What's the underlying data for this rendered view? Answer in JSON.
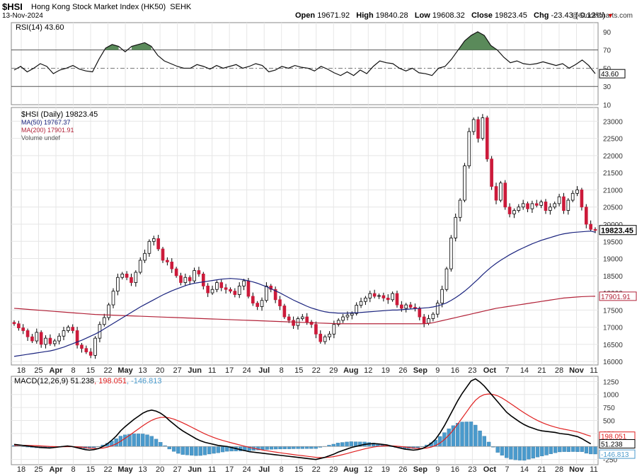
{
  "header": {
    "symbol": "$HSI",
    "name": "Hong Kong Stock Market Index (HK50)",
    "exchange": "SEHK",
    "date": "13-Nov-2024",
    "open_label": "Open",
    "open": "19671.92",
    "high_label": "High",
    "high": "19840.28",
    "low_label": "Low",
    "low": "19608.32",
    "close_label": "Close",
    "close": "19823.45",
    "chg_label": "Chg",
    "chg": "-23.43 (-0.12%)",
    "logo": "@StockCharts.com"
  },
  "colors": {
    "up_candle": "#ffffff",
    "down_candle": "#cc1a3a",
    "ma50": "#1a237e",
    "ma200": "#b22238",
    "rsi_fill": "#5a8a5a",
    "macd_line": "#000000",
    "macd_signal": "#e02020",
    "macd_hist": "#4a9acc"
  },
  "chart_data": [
    {
      "type": "line",
      "panel": "rsi",
      "title": "RSI(14) 43.60",
      "ylim": [
        10,
        100
      ],
      "yticks": [
        "90",
        "70",
        "50",
        "30",
        "10"
      ],
      "reference_lines": [
        70,
        30
      ],
      "last_value": "43.60",
      "values": [
        48,
        52,
        46,
        50,
        55,
        52,
        44,
        48,
        50,
        53,
        49,
        47,
        46,
        60,
        72,
        76,
        74,
        68,
        74,
        76,
        78,
        74,
        64,
        58,
        55,
        52,
        50,
        50,
        54,
        52,
        49,
        53,
        50,
        52,
        54,
        50,
        52,
        55,
        53,
        46,
        48,
        52,
        50,
        53,
        51,
        50,
        47,
        52,
        49,
        45,
        42,
        46,
        42,
        48,
        44,
        52,
        58,
        56,
        55,
        50,
        47,
        50,
        45,
        44,
        42,
        50,
        52,
        60,
        70,
        80,
        86,
        90,
        86,
        75,
        70,
        62,
        56,
        58,
        55,
        54,
        55,
        57,
        55,
        53,
        55,
        50,
        54,
        59,
        53,
        44
      ]
    },
    {
      "type": "candlestick",
      "panel": "price",
      "title": "$HSI (Daily) 19823.45",
      "legend": [
        "$HSI (Daily) 19823.45",
        "MA(50) 19767.37",
        "MA(200) 17901.91",
        "Volume undef"
      ],
      "ylim": [
        15900,
        23400
      ],
      "yticks": [
        "23000",
        "22500",
        "22000",
        "21500",
        "21000",
        "20500",
        "20000",
        "19500",
        "19000",
        "18500",
        "18000",
        "17500",
        "17000",
        "16500",
        "16000"
      ],
      "last_price_label": "19823.45",
      "ma200_label": "17901.91",
      "close": [
        17100,
        16980,
        16900,
        16720,
        16600,
        16850,
        16500,
        16680,
        16520,
        16600,
        16740,
        16900,
        17000,
        16900,
        16480,
        16380,
        16280,
        16180,
        16680,
        17080,
        17280,
        17650,
        18050,
        18450,
        18550,
        18450,
        18300,
        18600,
        18950,
        19150,
        19500,
        19580,
        19280,
        18950,
        18900,
        18700,
        18500,
        18300,
        18450,
        18350,
        18650,
        18550,
        18200,
        18000,
        18100,
        18300,
        18150,
        18100,
        18050,
        17950,
        18200,
        18350,
        17900,
        17700,
        17600,
        17780,
        18200,
        18100,
        17800,
        17620,
        17300,
        17200,
        17050,
        17250,
        17300,
        17150,
        17080,
        16800,
        16580,
        16720,
        16800,
        17080,
        17200,
        17300,
        17350,
        17400,
        17640,
        17750,
        17850,
        17980,
        17900,
        17920,
        17850,
        17800,
        17980,
        17650,
        17550,
        17650,
        17580,
        17540,
        17300,
        17120,
        17250,
        17380,
        17700,
        18100,
        18700,
        19600,
        20200,
        20700,
        21700,
        22700,
        23050,
        22500,
        23100,
        21900,
        21100,
        20700,
        21200,
        20500,
        20300,
        20400,
        20500,
        20600,
        20450,
        20600,
        20550,
        20650,
        20400,
        20500,
        20600,
        20800,
        20400,
        20700,
        20900,
        21000,
        20500,
        20000,
        19850,
        19820
      ],
      "ma50": [
        16150,
        16170,
        16190,
        16210,
        16230,
        16250,
        16270,
        16290,
        16310,
        16340,
        16380,
        16420,
        16470,
        16520,
        16570,
        16620,
        16680,
        16740,
        16800,
        16870,
        16950,
        17030,
        17110,
        17190,
        17270,
        17350,
        17430,
        17510,
        17590,
        17660,
        17730,
        17800,
        17870,
        17940,
        18000,
        18060,
        18110,
        18160,
        18210,
        18250,
        18280,
        18300,
        18320,
        18340,
        18360,
        18380,
        18400,
        18410,
        18420,
        18410,
        18400,
        18380,
        18350,
        18320,
        18280,
        18230,
        18180,
        18120,
        18060,
        18000,
        17930,
        17860,
        17790,
        17730,
        17670,
        17610,
        17560,
        17520,
        17480,
        17450,
        17430,
        17420,
        17410,
        17410,
        17410,
        17420,
        17420,
        17430,
        17440,
        17450,
        17460,
        17470,
        17480,
        17490,
        17500,
        17500,
        17510,
        17520,
        17530,
        17540,
        17550,
        17560,
        17570,
        17590,
        17620,
        17660,
        17710,
        17780,
        17860,
        17950,
        18050,
        18160,
        18280,
        18400,
        18530,
        18650,
        18760,
        18860,
        18950,
        19030,
        19110,
        19180,
        19250,
        19310,
        19370,
        19430,
        19480,
        19530,
        19570,
        19610,
        19650,
        19690,
        19720,
        19740,
        19760,
        19770,
        19780,
        19790,
        19800,
        19767
      ],
      "ma200": [
        17550,
        17540,
        17530,
        17520,
        17510,
        17500,
        17490,
        17480,
        17470,
        17460,
        17450,
        17440,
        17430,
        17420,
        17410,
        17400,
        17390,
        17380,
        17370,
        17365,
        17360,
        17355,
        17350,
        17345,
        17340,
        17335,
        17330,
        17325,
        17320,
        17315,
        17310,
        17305,
        17300,
        17295,
        17290,
        17285,
        17280,
        17275,
        17270,
        17265,
        17260,
        17255,
        17250,
        17245,
        17240,
        17235,
        17230,
        17225,
        17220,
        17215,
        17210,
        17205,
        17200,
        17195,
        17190,
        17185,
        17180,
        17175,
        17170,
        17165,
        17160,
        17155,
        17150,
        17145,
        17140,
        17135,
        17130,
        17125,
        17120,
        17115,
        17110,
        17105,
        17100,
        17100,
        17100,
        17100,
        17100,
        17100,
        17100,
        17100,
        17100,
        17100,
        17100,
        17100,
        17100,
        17100,
        17100,
        17100,
        17100,
        17100,
        17100,
        17100,
        17110,
        17130,
        17160,
        17190,
        17220,
        17250,
        17280,
        17310,
        17340,
        17370,
        17400,
        17430,
        17460,
        17490,
        17520,
        17550,
        17570,
        17590,
        17610,
        17630,
        17650,
        17670,
        17690,
        17710,
        17730,
        17750,
        17770,
        17790,
        17810,
        17830,
        17850,
        17860,
        17870,
        17880,
        17890,
        17895,
        17900,
        17901
      ]
    },
    {
      "type": "line",
      "panel": "macd",
      "title": "MACD(12,26,9) 51.238, 198.051, -146.813",
      "title_parts": [
        "MACD(12,26,9)",
        "51.238",
        "198.051",
        "-146.813"
      ],
      "ylim": [
        -350,
        1350
      ],
      "yticks": [
        "1250",
        "1000",
        "750",
        "500",
        "250",
        "-250"
      ],
      "last_labels": [
        "198.051",
        "51.238",
        "-146.813"
      ],
      "macd": [
        40,
        30,
        20,
        10,
        0,
        -10,
        -20,
        -25,
        -30,
        -20,
        -10,
        0,
        10,
        0,
        -20,
        -40,
        -60,
        -70,
        -60,
        -40,
        0,
        50,
        120,
        200,
        300,
        380,
        450,
        520,
        580,
        640,
        680,
        700,
        680,
        640,
        580,
        500,
        430,
        360,
        300,
        250,
        200,
        150,
        110,
        80,
        60,
        40,
        20,
        10,
        0,
        -20,
        -40,
        -60,
        -80,
        -100,
        -110,
        -120,
        -130,
        -140,
        -150,
        -160,
        -170,
        -180,
        -190,
        -200,
        -210,
        -220,
        -230,
        -240,
        -250,
        -230,
        -210,
        -180,
        -150,
        -110,
        -80,
        -50,
        -20,
        0,
        20,
        40,
        50,
        55,
        50,
        40,
        30,
        10,
        -10,
        -30,
        -50,
        -60,
        -70,
        -60,
        -40,
        0,
        60,
        140,
        260,
        400,
        560,
        720,
        880,
        1020,
        1140,
        1260,
        1300,
        1240,
        1160,
        1060,
        960,
        860,
        760,
        660,
        590,
        530,
        470,
        420,
        380,
        350,
        320,
        300,
        290,
        280,
        270,
        250,
        240,
        230,
        210,
        190,
        150,
        100,
        51
      ],
      "signal": [
        20,
        22,
        22,
        21,
        18,
        15,
        10,
        5,
        0,
        -3,
        -5,
        -5,
        -3,
        -3,
        -6,
        -12,
        -21,
        -31,
        -37,
        -38,
        -30,
        -14,
        13,
        50,
        100,
        156,
        215,
        276,
        337,
        398,
        454,
        503,
        538,
        559,
        563,
        550,
        526,
        493,
        455,
        414,
        371,
        327,
        284,
        243,
        206,
        173,
        142,
        116,
        93,
        70,
        48,
        26,
        5,
        -16,
        -35,
        -52,
        -68,
        -82,
        -96,
        -109,
        -121,
        -133,
        -144,
        -156,
        -167,
        -177,
        -188,
        -198,
        -209,
        -213,
        -213,
        -206,
        -195,
        -178,
        -158,
        -137,
        -113,
        -91,
        -69,
        -47,
        -28,
        -11,
        1,
        9,
        13,
        12,
        7,
        0,
        -10,
        -20,
        -30,
        -36,
        -37,
        -30,
        -12,
        18,
        66,
        133,
        218,
        318,
        430,
        548,
        666,
        785,
        888,
        958,
        998,
        1010,
        1000,
        974,
        931,
        878,
        820,
        762,
        703,
        647,
        593,
        544,
        499,
        460,
        426,
        397,
        372,
        350,
        332,
        316,
        299,
        281,
        255,
        224,
        198
      ],
      "histogram": [
        20,
        8,
        -2,
        -11,
        -18,
        -25,
        -30,
        -30,
        -30,
        -17,
        -5,
        5,
        13,
        3,
        -14,
        -28,
        -39,
        -39,
        -23,
        -2,
        30,
        64,
        107,
        150,
        200,
        224,
        235,
        244,
        243,
        242,
        226,
        197,
        142,
        81,
        17,
        -50,
        -96,
        -133,
        -155,
        -164,
        -171,
        -177,
        -174,
        -163,
        -146,
        -133,
        -122,
        -106,
        -93,
        -90,
        -88,
        -86,
        -85,
        -84,
        -75,
        -68,
        -62,
        -58,
        -54,
        -51,
        -49,
        -47,
        -46,
        -44,
        -43,
        -43,
        -42,
        -42,
        -41,
        -17,
        3,
        26,
        45,
        68,
        78,
        87,
        93,
        91,
        89,
        87,
        78,
        66,
        49,
        31,
        17,
        -2,
        -17,
        -30,
        -40,
        -40,
        -40,
        -24,
        -3,
        30,
        72,
        122,
        194,
        267,
        342,
        402,
        450,
        472,
        474,
        475,
        412,
        302,
        198,
        86,
        -14,
        -114,
        -171,
        -218,
        -244,
        -257,
        -265,
        -267,
        -244,
        -227,
        -204,
        -184,
        -166,
        -142,
        -122,
        -105,
        -100,
        -102,
        -99,
        -102,
        -101,
        -131,
        -145,
        -146
      ]
    }
  ],
  "x_axis": {
    "tick_labels": [
      "18",
      "25",
      "Apr",
      "8",
      "15",
      "22",
      "May",
      "13",
      "20",
      "27",
      "Jun",
      "11",
      "17",
      "24",
      "Jul",
      "8",
      "15",
      "22",
      "29",
      "Aug",
      "12",
      "19",
      "26",
      "Sep",
      "9",
      "16",
      "23",
      "Oct",
      "7",
      "14",
      "21",
      "28",
      "Nov",
      "11"
    ],
    "bold_labels": [
      "Apr",
      "May",
      "Jun",
      "Jul",
      "Aug",
      "Sep",
      "Oct",
      "Nov"
    ]
  }
}
